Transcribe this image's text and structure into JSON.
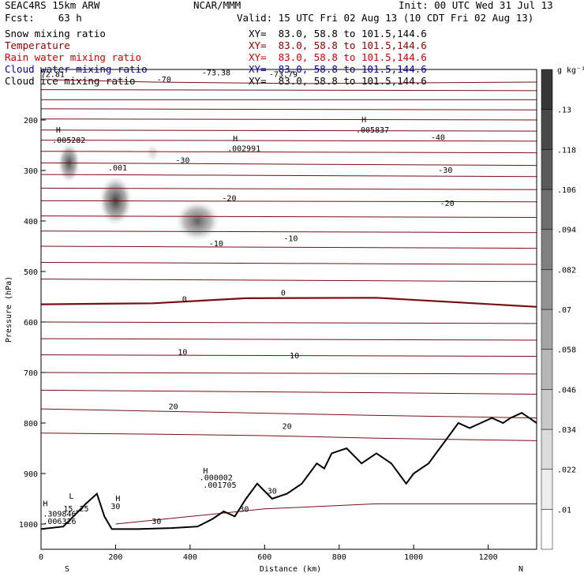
{
  "header": {
    "model": "SEAC4RS 15km ARW",
    "fcst": "Fcst:    63 h",
    "org": "NCAR/MMM",
    "init": "Init: 00 UTC Wed 31 Jul 13",
    "valid": "Valid: 15 UTC Fri 02 Aug 13 (10 CDT Fri 02 Aug 13)"
  },
  "legend": [
    {
      "name": "Snow mixing ratio",
      "color": "#000000",
      "xy": "XY=  83.0, 58.8 to 101.5,144.6"
    },
    {
      "name": "Temperature",
      "color": "#8b0000",
      "xy": "XY=  83.0, 58.8 to 101.5,144.6"
    },
    {
      "name": "Rain water mixing ratio",
      "color": "#cc0000",
      "xy": "XY=  83.0, 58.8 to 101.5,144.6"
    },
    {
      "name": "Cloud water mixing ratio",
      "color": "#0000aa",
      "xy": "XY=  83.0, 58.8 to 101.5,144.6"
    },
    {
      "name": "Cloud ice mixing ratio",
      "color": "#000000",
      "xy": "XY=  83.0, 58.8 to 101.5,144.6"
    }
  ],
  "colorbar": {
    "unit": "g kg⁻¹",
    "labels": [
      ".01",
      ".022",
      ".034",
      ".046",
      ".058",
      ".07",
      ".082",
      ".094",
      ".106",
      ".118",
      ".13"
    ]
  },
  "chart_data": {
    "type": "cross-section",
    "xlabel": "Distance (km)",
    "ylabel": "Pressure (hPa)",
    "xlim": [
      0,
      1330
    ],
    "ylim": [
      1050,
      100
    ],
    "xticks": [
      0,
      200,
      400,
      600,
      800,
      1000,
      1200
    ],
    "yticks": [
      200,
      300,
      400,
      500,
      600,
      700,
      800,
      900,
      1000
    ],
    "ends": {
      "left": "S",
      "right": "N"
    },
    "temperature_contours": [
      {
        "label": "-70",
        "pts": [
          [
            0,
            160
          ],
          [
            1330,
            160
          ]
        ]
      },
      {
        "label": "-70",
        "pts": [
          [
            0,
            120
          ],
          [
            300,
            125
          ],
          [
            700,
            128
          ],
          [
            1330,
            125
          ]
        ]
      },
      {
        "label": "",
        "pts": [
          [
            0,
            140
          ],
          [
            1330,
            142
          ]
        ]
      },
      {
        "label": "",
        "pts": [
          [
            0,
            178
          ],
          [
            1330,
            180
          ]
        ]
      },
      {
        "label": "",
        "pts": [
          [
            0,
            198
          ],
          [
            1330,
            200
          ]
        ]
      },
      {
        "label": "",
        "pts": [
          [
            0,
            220
          ],
          [
            1330,
            222
          ]
        ]
      },
      {
        "label": "-40",
        "pts": [
          [
            0,
            240
          ],
          [
            1330,
            242
          ]
        ]
      },
      {
        "label": "",
        "pts": [
          [
            0,
            262
          ],
          [
            1330,
            265
          ]
        ]
      },
      {
        "label": "-30",
        "pts": [
          [
            0,
            285
          ],
          [
            1330,
            290
          ]
        ]
      },
      {
        "label": "",
        "pts": [
          [
            0,
            308
          ],
          [
            1330,
            312
          ]
        ]
      },
      {
        "label": "-20",
        "pts": [
          [
            0,
            335
          ],
          [
            1330,
            338
          ]
        ]
      },
      {
        "label": "",
        "pts": [
          [
            0,
            360
          ],
          [
            1330,
            362
          ]
        ]
      },
      {
        "label": "",
        "pts": [
          [
            0,
            390
          ],
          [
            1330,
            393
          ]
        ]
      },
      {
        "label": "-10",
        "pts": [
          [
            0,
            420
          ],
          [
            1330,
            423
          ]
        ]
      },
      {
        "label": "",
        "pts": [
          [
            0,
            450
          ],
          [
            1330,
            454
          ]
        ]
      },
      {
        "label": "",
        "pts": [
          [
            0,
            482
          ],
          [
            1330,
            486
          ]
        ]
      },
      {
        "label": "",
        "pts": [
          [
            0,
            515
          ],
          [
            1330,
            520
          ]
        ]
      },
      {
        "label": "0",
        "pts": [
          [
            0,
            565
          ],
          [
            300,
            563
          ],
          [
            550,
            553
          ],
          [
            900,
            552
          ],
          [
            1330,
            570
          ]
        ]
      },
      {
        "label": "",
        "pts": [
          [
            0,
            600
          ],
          [
            1330,
            603
          ]
        ]
      },
      {
        "label": "",
        "pts": [
          [
            0,
            633
          ],
          [
            1330,
            636
          ]
        ]
      },
      {
        "label": "10",
        "pts": [
          [
            0,
            665
          ],
          [
            1330,
            668
          ]
        ]
      },
      {
        "label": "",
        "pts": [
          [
            0,
            700
          ],
          [
            1330,
            703
          ]
        ]
      },
      {
        "label": "",
        "pts": [
          [
            0,
            735
          ],
          [
            900,
            740
          ],
          [
            1330,
            743
          ]
        ]
      },
      {
        "label": "20",
        "pts": [
          [
            0,
            772
          ],
          [
            900,
            785
          ],
          [
            1330,
            790
          ]
        ]
      },
      {
        "label": "",
        "pts": [
          [
            0,
            820
          ],
          [
            300,
            822
          ],
          [
            600,
            825
          ],
          [
            900,
            830
          ],
          [
            1330,
            835
          ]
        ]
      },
      {
        "label": "30",
        "pts": [
          [
            200,
            1000
          ],
          [
            400,
            985
          ],
          [
            600,
            970
          ],
          [
            900,
            960
          ],
          [
            1330,
            960
          ]
        ]
      }
    ],
    "temperature_labels": [
      {
        "text": "-70",
        "x": 330,
        "p": 125
      },
      {
        "text": "-73.38",
        "x": 470,
        "p": 112
      },
      {
        "text": "-73.79",
        "x": 650,
        "p": 115
      },
      {
        "text": "-72.81",
        "x": 25,
        "p": 115
      },
      {
        "text": "-40",
        "x": 1065,
        "p": 240
      },
      {
        "text": "-30",
        "x": 380,
        "p": 285
      },
      {
        "text": "-30",
        "x": 1085,
        "p": 305
      },
      {
        "text": "-20",
        "x": 505,
        "p": 360
      },
      {
        "text": "-20",
        "x": 1090,
        "p": 370
      },
      {
        "text": "-10",
        "x": 470,
        "p": 450
      },
      {
        "text": "-10",
        "x": 670,
        "p": 440
      },
      {
        "text": "0",
        "x": 385,
        "p": 560
      },
      {
        "text": "0",
        "x": 650,
        "p": 548
      },
      {
        "text": "10",
        "x": 380,
        "p": 665
      },
      {
        "text": "10",
        "x": 680,
        "p": 672
      },
      {
        "text": "20",
        "x": 355,
        "p": 773
      },
      {
        "text": "20",
        "x": 660,
        "p": 812
      },
      {
        "text": "30",
        "x": 200,
        "p": 970
      },
      {
        "text": "30",
        "x": 310,
        "p": 1000
      },
      {
        "text": "30",
        "x": 545,
        "p": 976
      },
      {
        "text": "30",
        "x": 620,
        "p": 940
      }
    ],
    "terrain": [
      [
        0,
        1010
      ],
      [
        60,
        1005
      ],
      [
        120,
        960
      ],
      [
        150,
        940
      ],
      [
        170,
        985
      ],
      [
        190,
        1010
      ],
      [
        260,
        1010
      ],
      [
        350,
        1008
      ],
      [
        420,
        1005
      ],
      [
        460,
        990
      ],
      [
        490,
        975
      ],
      [
        520,
        985
      ],
      [
        550,
        950
      ],
      [
        580,
        920
      ],
      [
        620,
        950
      ],
      [
        660,
        940
      ],
      [
        700,
        920
      ],
      [
        740,
        880
      ],
      [
        760,
        890
      ],
      [
        780,
        860
      ],
      [
        820,
        850
      ],
      [
        860,
        880
      ],
      [
        900,
        860
      ],
      [
        940,
        880
      ],
      [
        980,
        920
      ],
      [
        1000,
        900
      ],
      [
        1040,
        880
      ],
      [
        1060,
        860
      ],
      [
        1080,
        840
      ],
      [
        1100,
        820
      ],
      [
        1120,
        800
      ],
      [
        1150,
        810
      ],
      [
        1180,
        800
      ],
      [
        1210,
        790
      ],
      [
        1240,
        800
      ],
      [
        1260,
        790
      ],
      [
        1290,
        780
      ],
      [
        1310,
        790
      ],
      [
        1330,
        800
      ]
    ],
    "snow_blobs": [
      {
        "x": 75,
        "p": 285,
        "rx": 30,
        "rp": 40,
        "max": 0.12
      },
      {
        "x": 200,
        "p": 360,
        "rx": 45,
        "rp": 50,
        "max": 0.13
      },
      {
        "x": 420,
        "p": 400,
        "rx": 60,
        "rp": 40,
        "max": 0.11
      },
      {
        "x": 300,
        "p": 265,
        "rx": 18,
        "rp": 18,
        "max": 0.03
      }
    ],
    "ice_markers": [
      {
        "text": "H",
        "x": 40,
        "p": 225
      },
      {
        "text": ".005282",
        "x": 30,
        "p": 245
      },
      {
        "text": ".001",
        "x": 180,
        "p": 300
      },
      {
        "text": "H",
        "x": 515,
        "p": 242
      },
      {
        "text": ".002991",
        "x": 500,
        "p": 262
      },
      {
        "text": "H",
        "x": 860,
        "p": 205
      },
      {
        "text": ".005837",
        "x": 845,
        "p": 225
      }
    ],
    "rain_markers": [
      {
        "text": "H",
        "x": 435,
        "p": 900
      },
      {
        "text": ".000002",
        "x": 425,
        "p": 913
      },
      {
        "text": "H",
        "x": 200,
        "p": 955
      }
    ],
    "cloudwater_markers": [
      {
        "text": "H",
        "x": 5,
        "p": 965
      },
      {
        "text": ".309846",
        "x": 5,
        "p": 985
      },
      {
        "text": ".006326",
        "x": 5,
        "p": 1000
      },
      {
        "text": "L",
        "x": 75,
        "p": 950
      },
      {
        "text": "15",
        "x": 60,
        "p": 975
      },
      {
        "text": ".25",
        "x": 90,
        "p": 975
      },
      {
        "text": ".001705",
        "x": 435,
        "p": 928
      }
    ]
  }
}
